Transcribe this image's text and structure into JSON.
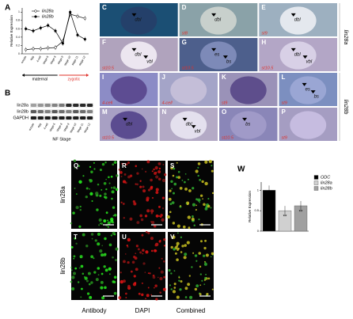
{
  "chart_data": [
    {
      "type": "line",
      "letter": "A",
      "y_label": "Relative Expression",
      "categories": [
        "oocyte",
        "egg",
        "4-cell",
        "stage 6",
        "stage 8",
        "stage 9",
        "stage 10",
        "stage 11",
        "stage 12"
      ],
      "series": [
        {
          "name": "lin28a",
          "color": "#ffffff",
          "values": [
            0.1,
            0.12,
            0.12,
            0.14,
            0.15,
            0.3,
            0.95,
            0.9,
            0.85
          ]
        },
        {
          "name": "lin28b",
          "color": "#000000",
          "values": [
            0.6,
            0.55,
            0.62,
            0.68,
            0.55,
            0.25,
            1.0,
            0.45,
            0.35
          ]
        }
      ],
      "ylim": [
        0,
        1.1
      ],
      "yticks": [
        0,
        0.2,
        0.4,
        0.6,
        0.8,
        1
      ],
      "phases": [
        {
          "label": "maternal",
          "color": "#000000"
        },
        {
          "label": "zygotic",
          "color": "#e0302a"
        }
      ]
    },
    {
      "type": "bar",
      "letter": "W",
      "y_label": "Relative Expression",
      "series": [
        {
          "name": "ODC",
          "color": "#000000",
          "value": 1.0
        },
        {
          "name": "lin28a",
          "color": "#d0d0d0",
          "value": 0.5,
          "note": "**"
        },
        {
          "name": "lin28b",
          "color": "#a0a0a0",
          "value": 0.62,
          "note": "**"
        }
      ],
      "ylim": [
        0,
        1.2
      ],
      "yticks": [
        0,
        0.5,
        1
      ]
    }
  ],
  "panel_b": {
    "letter": "B",
    "rows": [
      "lin28a",
      "lin28b",
      "GAPDH"
    ],
    "lanes": [
      "oocyte",
      "egg",
      "4-cell",
      "stage 6",
      "stage 8",
      "stage 9",
      "stage 10",
      "stage 11",
      "stage 12"
    ],
    "x_label": "NF Stage"
  },
  "embryos": [
    {
      "letter": "C",
      "annotations": [
        "dbl"
      ],
      "stage": ""
    },
    {
      "letter": "D",
      "annotations": [
        "dbl"
      ],
      "stage": "st8"
    },
    {
      "letter": "E",
      "annotations": [
        "dbl"
      ],
      "stage": "st9"
    },
    {
      "letter": "F",
      "annotations": [
        "dbl",
        "vbl"
      ],
      "stage": "st10.5"
    },
    {
      "letter": "G",
      "annotations": [
        "es",
        "bs"
      ],
      "stage": "st10.5"
    },
    {
      "letter": "H",
      "annotations": [
        "dbl",
        "vbl"
      ],
      "stage": "st10.5"
    },
    {
      "letter": "I",
      "annotations": [],
      "stage": "4-cell"
    },
    {
      "letter": "J",
      "annotations": [],
      "stage": "4-cell"
    },
    {
      "letter": "K",
      "annotations": [],
      "stage": "st9"
    },
    {
      "letter": "L",
      "annotations": [
        "es",
        "bs"
      ],
      "stage": "st9"
    },
    {
      "letter": "M",
      "annotations": [
        "dbl"
      ],
      "stage": "st10.5"
    },
    {
      "letter": "N",
      "annotations": [
        "dbl",
        "vbl"
      ],
      "stage": ""
    },
    {
      "letter": "O",
      "annotations": [
        "bs"
      ],
      "stage": "st10.5"
    },
    {
      "letter": "P",
      "annotations": [],
      "stage": "st9"
    }
  ],
  "side_labels": [
    "lin28a",
    "lin28b"
  ],
  "microscopy": {
    "rows": [
      {
        "label": "lin28a",
        "letters": [
          "Q",
          "R",
          "S"
        ]
      },
      {
        "label": "lin28b",
        "letters": [
          "T",
          "U",
          "V"
        ]
      }
    ],
    "columns": [
      "Antibody",
      "DAPI",
      "Combined"
    ]
  }
}
